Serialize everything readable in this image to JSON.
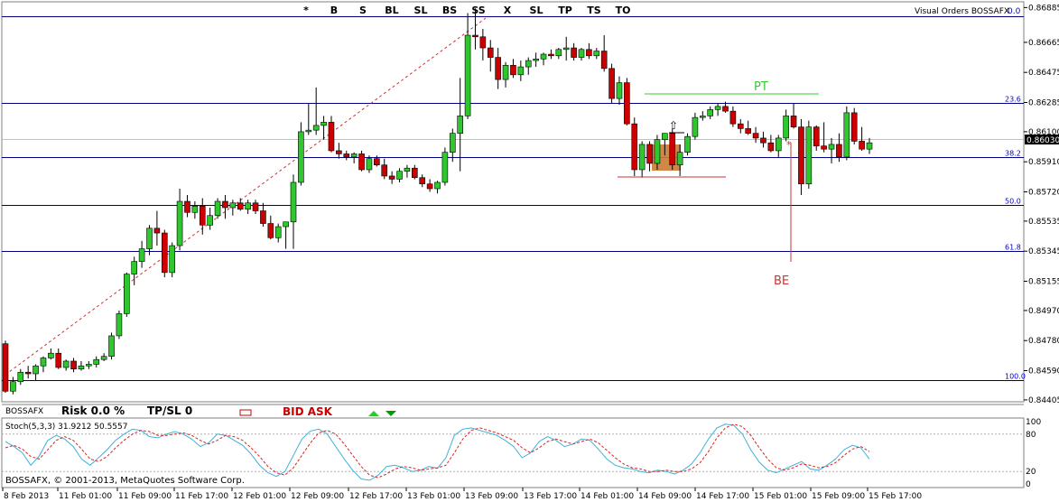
{
  "toolbar": {
    "items": [
      "*",
      "B",
      "S",
      "BL",
      "SL",
      "BS",
      "SS",
      "X",
      "SL",
      "TP",
      "TS",
      "TO"
    ],
    "indicator_label": "Visual Orders BOSSAFX",
    "indicator_value": "0.0"
  },
  "bottom_bar": {
    "symbol": "BOSSAFX",
    "risk": "Risk  0.0 %",
    "tpsl": "TP/SL  0",
    "bid_ask": "BID ASK"
  },
  "copyright": "BOSSAFX, © 2001-2013, MetaQuotes Software Corp.",
  "stoch_label": "Stoch(5,3,3) 31.9212 50.5557",
  "fib_levels": [
    {
      "label": "0.0",
      "price": 0.8683
    },
    {
      "label": "23.6",
      "price": 0.8628
    },
    {
      "label": "38.2",
      "price": 0.8594
    },
    {
      "label": "50.0",
      "price": 0.85635
    },
    {
      "label": "61.8",
      "price": 0.85345
    },
    {
      "label": "100.0",
      "price": 0.8453
    }
  ],
  "annotations": {
    "pt": "PT",
    "be": "BE"
  },
  "colors": {
    "bull": "#2ec82e",
    "bear": "#cc0000",
    "fib": "#000080",
    "box": "#cc7a33",
    "pt": "#33cc33",
    "be": "#cc3333"
  },
  "chart_data": {
    "type": "candlestick",
    "y_axis_ticks": [
      "0.86885",
      "0.86665",
      "0.86475",
      "0.86285",
      "0.86100",
      "0.85910",
      "0.85720",
      "0.85535",
      "0.85345",
      "0.85155",
      "0.84970",
      "0.84780",
      "0.84590",
      "0.84405"
    ],
    "current_price": "0.86030",
    "ylim": [
      0.8437,
      0.8693
    ],
    "x_axis_ticks": [
      "8 Feb 2013",
      "11 Feb 01:00",
      "11 Feb 09:00",
      "11 Feb 17:00",
      "12 Feb 01:00",
      "12 Feb 09:00",
      "12 Feb 17:00",
      "13 Feb 01:00",
      "13 Feb 09:00",
      "13 Feb 17:00",
      "14 Feb 01:00",
      "14 Feb 09:00",
      "14 Feb 17:00",
      "15 Feb 01:00",
      "15 Feb 09:00",
      "15 Feb 17:00"
    ],
    "candles_ohlc": [
      [
        0.8476,
        0.8478,
        0.8445,
        0.8446
      ],
      [
        0.8446,
        0.8455,
        0.8444,
        0.8452
      ],
      [
        0.8452,
        0.846,
        0.845,
        0.8458
      ],
      [
        0.8458,
        0.8462,
        0.8454,
        0.8457
      ],
      [
        0.8457,
        0.8463,
        0.8453,
        0.8462
      ],
      [
        0.8462,
        0.8468,
        0.8458,
        0.8467
      ],
      [
        0.8467,
        0.8473,
        0.8466,
        0.847
      ],
      [
        0.847,
        0.8473,
        0.846,
        0.8461
      ],
      [
        0.8461,
        0.8466,
        0.8459,
        0.8465
      ],
      [
        0.8465,
        0.8467,
        0.8458,
        0.846
      ],
      [
        0.846,
        0.8465,
        0.8459,
        0.8462
      ],
      [
        0.8462,
        0.8465,
        0.846,
        0.8463
      ],
      [
        0.8463,
        0.8468,
        0.8461,
        0.8466
      ],
      [
        0.8466,
        0.847,
        0.8465,
        0.8468
      ],
      [
        0.8468,
        0.8483,
        0.8466,
        0.8481
      ],
      [
        0.8481,
        0.8497,
        0.8479,
        0.8495
      ],
      [
        0.8495,
        0.8521,
        0.8493,
        0.852
      ],
      [
        0.852,
        0.8531,
        0.8513,
        0.8528
      ],
      [
        0.8528,
        0.8541,
        0.8524,
        0.8536
      ],
      [
        0.8536,
        0.8551,
        0.8532,
        0.8549
      ],
      [
        0.8549,
        0.856,
        0.8538,
        0.8546
      ],
      [
        0.8546,
        0.8548,
        0.8518,
        0.8521
      ],
      [
        0.8521,
        0.854,
        0.8518,
        0.8538
      ],
      [
        0.8538,
        0.8574,
        0.8535,
        0.8566
      ],
      [
        0.8566,
        0.857,
        0.8556,
        0.8559
      ],
      [
        0.8559,
        0.8566,
        0.8555,
        0.8563
      ],
      [
        0.8563,
        0.8568,
        0.8545,
        0.8551
      ],
      [
        0.8551,
        0.8562,
        0.8548,
        0.8557
      ],
      [
        0.8557,
        0.8568,
        0.8555,
        0.8566
      ],
      [
        0.8566,
        0.857,
        0.8555,
        0.8562
      ],
      [
        0.8562,
        0.8567,
        0.8557,
        0.8565
      ],
      [
        0.8565,
        0.8568,
        0.856,
        0.8561
      ],
      [
        0.8561,
        0.8567,
        0.8558,
        0.8565
      ],
      [
        0.8565,
        0.8567,
        0.8558,
        0.856
      ],
      [
        0.856,
        0.8565,
        0.855,
        0.8552
      ],
      [
        0.8552,
        0.8557,
        0.8542,
        0.8543
      ],
      [
        0.8543,
        0.8552,
        0.854,
        0.855
      ],
      [
        0.855,
        0.8553,
        0.8536,
        0.8553
      ],
      [
        0.8553,
        0.8583,
        0.8536,
        0.8578
      ],
      [
        0.8578,
        0.8616,
        0.8576,
        0.861
      ],
      [
        0.861,
        0.8628,
        0.8608,
        0.8611
      ],
      [
        0.8611,
        0.8638,
        0.8608,
        0.8614
      ],
      [
        0.8614,
        0.862,
        0.8605,
        0.8616
      ],
      [
        0.8616,
        0.862,
        0.8597,
        0.8598
      ],
      [
        0.8598,
        0.8603,
        0.8593,
        0.8596
      ],
      [
        0.8596,
        0.8598,
        0.8592,
        0.8594
      ],
      [
        0.8594,
        0.8597,
        0.859,
        0.8596
      ],
      [
        0.8596,
        0.8598,
        0.8585,
        0.8586
      ],
      [
        0.8586,
        0.8595,
        0.8584,
        0.8593
      ],
      [
        0.8593,
        0.8595,
        0.8588,
        0.8589
      ],
      [
        0.8589,
        0.8593,
        0.858,
        0.8582
      ],
      [
        0.8582,
        0.8585,
        0.8577,
        0.858
      ],
      [
        0.858,
        0.8587,
        0.8578,
        0.8585
      ],
      [
        0.8585,
        0.8589,
        0.8581,
        0.8587
      ],
      [
        0.8587,
        0.8589,
        0.858,
        0.8581
      ],
      [
        0.8581,
        0.8583,
        0.8575,
        0.8577
      ],
      [
        0.8577,
        0.858,
        0.8572,
        0.8574
      ],
      [
        0.8574,
        0.8579,
        0.8571,
        0.8578
      ],
      [
        0.8578,
        0.86,
        0.8576,
        0.8597
      ],
      [
        0.8597,
        0.8612,
        0.8591,
        0.8609
      ],
      [
        0.8609,
        0.8644,
        0.8585,
        0.862
      ],
      [
        0.862,
        0.8685,
        0.8618,
        0.8671
      ],
      [
        0.8671,
        0.8688,
        0.8662,
        0.867
      ],
      [
        0.867,
        0.8675,
        0.8655,
        0.8663
      ],
      [
        0.8663,
        0.8668,
        0.8648,
        0.8657
      ],
      [
        0.8657,
        0.8663,
        0.8637,
        0.8643
      ],
      [
        0.8643,
        0.8654,
        0.8638,
        0.8652
      ],
      [
        0.8652,
        0.8656,
        0.8644,
        0.8646
      ],
      [
        0.8646,
        0.8655,
        0.8642,
        0.8651
      ],
      [
        0.8651,
        0.8657,
        0.8646,
        0.8655
      ],
      [
        0.8655,
        0.866,
        0.8651,
        0.8656
      ],
      [
        0.8656,
        0.866,
        0.8652,
        0.8659
      ],
      [
        0.8659,
        0.8662,
        0.8656,
        0.8658
      ],
      [
        0.8658,
        0.8663,
        0.8656,
        0.8662
      ],
      [
        0.8662,
        0.867,
        0.8655,
        0.8663
      ],
      [
        0.8663,
        0.8666,
        0.8655,
        0.8657
      ],
      [
        0.8657,
        0.8663,
        0.8655,
        0.8662
      ],
      [
        0.8662,
        0.8666,
        0.8656,
        0.8658
      ],
      [
        0.8658,
        0.8663,
        0.8656,
        0.8661
      ],
      [
        0.8661,
        0.8671,
        0.8648,
        0.865
      ],
      [
        0.865,
        0.8653,
        0.8628,
        0.8631
      ],
      [
        0.8631,
        0.8645,
        0.8627,
        0.8641
      ],
      [
        0.8641,
        0.8644,
        0.8614,
        0.8615
      ],
      [
        0.8615,
        0.8619,
        0.8582,
        0.8586
      ],
      [
        0.8586,
        0.8604,
        0.8581,
        0.8602
      ],
      [
        0.8602,
        0.8604,
        0.8585,
        0.859
      ],
      [
        0.859,
        0.8608,
        0.8586,
        0.8605
      ],
      [
        0.8605,
        0.8609,
        0.8595,
        0.8609
      ],
      [
        0.8609,
        0.8612,
        0.8586,
        0.8589
      ],
      [
        0.8589,
        0.8602,
        0.8582,
        0.8597
      ],
      [
        0.8597,
        0.8609,
        0.8595,
        0.8607
      ],
      [
        0.8607,
        0.8622,
        0.8605,
        0.8619
      ],
      [
        0.8619,
        0.8623,
        0.8617,
        0.862
      ],
      [
        0.862,
        0.8626,
        0.8618,
        0.8624
      ],
      [
        0.8624,
        0.8628,
        0.862,
        0.8626
      ],
      [
        0.8626,
        0.8629,
        0.8622,
        0.8623
      ],
      [
        0.8623,
        0.8626,
        0.8613,
        0.8615
      ],
      [
        0.8615,
        0.8618,
        0.8609,
        0.8612
      ],
      [
        0.8612,
        0.8617,
        0.8608,
        0.8609
      ],
      [
        0.8609,
        0.8613,
        0.8603,
        0.8606
      ],
      [
        0.8606,
        0.861,
        0.86,
        0.8603
      ],
      [
        0.8603,
        0.8608,
        0.8597,
        0.8598
      ],
      [
        0.8598,
        0.8608,
        0.8594,
        0.8606
      ],
      [
        0.8606,
        0.8624,
        0.8604,
        0.862
      ],
      [
        0.862,
        0.8628,
        0.8612,
        0.8613
      ],
      [
        0.8613,
        0.8618,
        0.857,
        0.8577
      ],
      [
        0.8577,
        0.8617,
        0.8574,
        0.8613
      ],
      [
        0.8613,
        0.8614,
        0.8598,
        0.8601
      ],
      [
        0.8601,
        0.8616,
        0.8597,
        0.8599
      ],
      [
        0.8599,
        0.8606,
        0.859,
        0.8602
      ],
      [
        0.8602,
        0.8609,
        0.8591,
        0.8594
      ],
      [
        0.8594,
        0.8626,
        0.8592,
        0.8622
      ],
      [
        0.8622,
        0.8625,
        0.8602,
        0.8604
      ],
      [
        0.8604,
        0.8613,
        0.8598,
        0.8599
      ],
      [
        0.8599,
        0.8606,
        0.8596,
        0.8603
      ]
    ],
    "stoch_main": [
      68,
      60,
      50,
      30,
      45,
      70,
      78,
      72,
      60,
      40,
      30,
      42,
      55,
      70,
      80,
      88,
      86,
      76,
      74,
      80,
      84,
      80,
      72,
      60,
      66,
      80,
      78,
      70,
      62,
      48,
      30,
      18,
      12,
      20,
      46,
      72,
      85,
      88,
      80,
      60,
      40,
      22,
      8,
      6,
      14,
      28,
      30,
      26,
      20,
      22,
      28,
      25,
      42,
      78,
      88,
      90,
      86,
      82,
      78,
      70,
      60,
      42,
      50,
      68,
      76,
      70,
      60,
      64,
      72,
      70,
      56,
      40,
      30,
      26,
      24,
      20,
      18,
      22,
      20,
      16,
      22,
      32,
      50,
      72,
      90,
      96,
      94,
      80,
      55,
      35,
      22,
      18,
      24,
      30,
      36,
      24,
      22,
      30,
      40,
      55,
      62,
      58,
      40
    ],
    "stoch_signal": [
      58,
      62,
      56,
      44,
      40,
      55,
      70,
      76,
      70,
      56,
      40,
      36,
      44,
      58,
      70,
      80,
      86,
      84,
      78,
      78,
      80,
      82,
      78,
      70,
      64,
      70,
      78,
      76,
      70,
      58,
      44,
      28,
      18,
      14,
      26,
      46,
      66,
      82,
      86,
      80,
      64,
      46,
      28,
      14,
      10,
      16,
      24,
      28,
      26,
      22,
      24,
      26,
      30,
      50,
      72,
      86,
      90,
      86,
      82,
      76,
      70,
      58,
      50,
      58,
      68,
      72,
      68,
      64,
      68,
      72,
      66,
      54,
      42,
      32,
      26,
      24,
      20,
      20,
      22,
      20,
      20,
      24,
      34,
      52,
      74,
      90,
      96,
      92,
      78,
      58,
      40,
      26,
      22,
      26,
      32,
      30,
      26,
      28,
      34,
      46,
      56,
      60,
      52
    ],
    "stoch_levels": [
      100,
      80,
      20,
      0
    ]
  }
}
